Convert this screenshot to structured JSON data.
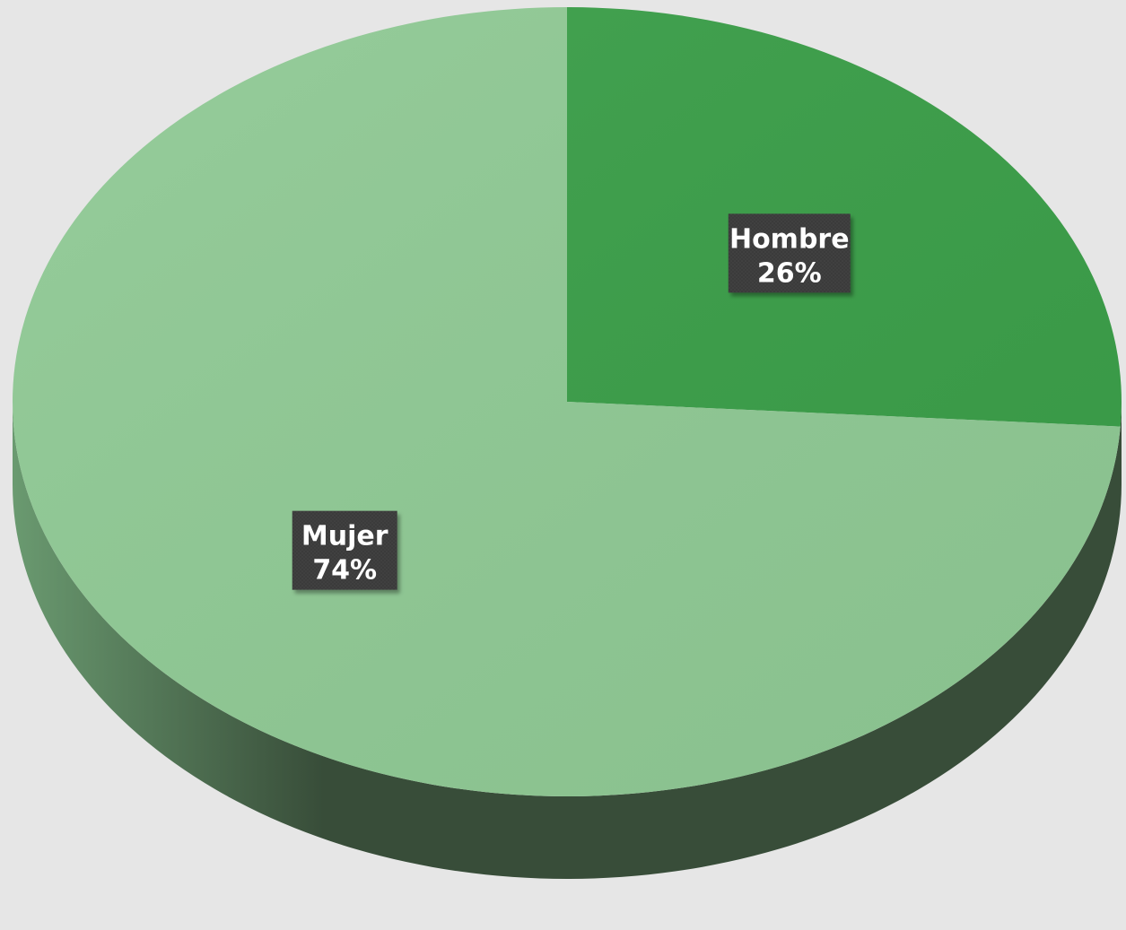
{
  "chart_data": {
    "type": "pie",
    "style": "3d",
    "title": "",
    "slices": [
      {
        "label": "Hombre",
        "value": 26,
        "value_label": "26%",
        "color": "#3a9e48"
      },
      {
        "label": "Mujer",
        "value": 74,
        "value_label": "74%",
        "color": "#8fc994"
      }
    ],
    "side_colors": {
      "light": "#6a9a70",
      "dark": "#384d39"
    },
    "label_box_color": "#3b3b3b",
    "legend": "none"
  }
}
